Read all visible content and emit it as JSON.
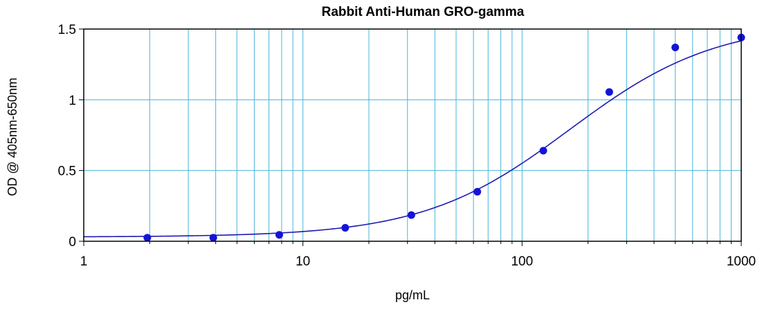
{
  "chart_data": {
    "type": "scatter",
    "title": "Rabbit Anti-Human GRO-gamma",
    "xlabel": "pg/mL",
    "ylabel": "OD @ 405nm-650nm",
    "x_scale": "log",
    "xlim": [
      1,
      1000
    ],
    "ylim": [
      0,
      1.5
    ],
    "x_ticks": [
      {
        "value": 1,
        "label": "1"
      },
      {
        "value": 10,
        "label": "10"
      },
      {
        "value": 100,
        "label": "100"
      },
      {
        "value": 1000,
        "label": "1000"
      }
    ],
    "y_ticks": [
      {
        "value": 0,
        "label": "0"
      },
      {
        "value": 0.5,
        "label": "0.5"
      },
      {
        "value": 1,
        "label": "1"
      },
      {
        "value": 1.5,
        "label": "1.5"
      }
    ],
    "grid": true,
    "points": [
      {
        "x": 1.95,
        "y": 0.025
      },
      {
        "x": 3.9,
        "y": 0.025
      },
      {
        "x": 7.8,
        "y": 0.045
      },
      {
        "x": 15.6,
        "y": 0.095
      },
      {
        "x": 31.25,
        "y": 0.185
      },
      {
        "x": 62.5,
        "y": 0.35
      },
      {
        "x": 125,
        "y": 0.64
      },
      {
        "x": 250,
        "y": 1.055
      },
      {
        "x": 500,
        "y": 1.37
      },
      {
        "x": 1000,
        "y": 1.44
      }
    ],
    "fit_curve": {
      "type": "4PL",
      "bottom": 0.03,
      "top": 1.55,
      "ec50": 165,
      "hill": 1.3
    },
    "colors": {
      "points": "#1414d8",
      "curve": "#1a1ab0",
      "grid": "#48b4dc",
      "axes": "#000000"
    }
  }
}
